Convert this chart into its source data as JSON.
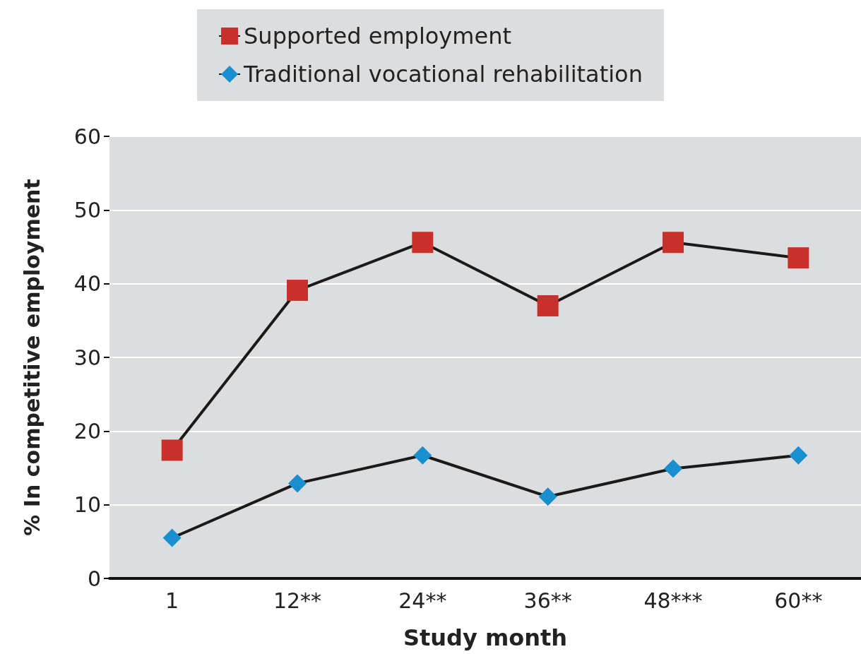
{
  "chart_data": {
    "type": "line",
    "xlabel": "Study month",
    "ylabel": "% In competitive employment",
    "categories": [
      "1",
      "12**",
      "24**",
      "36**",
      "48***",
      "60**"
    ],
    "series": [
      {
        "name": "Supported employment",
        "color": "#c8312b",
        "marker": "square",
        "values": [
          17.4,
          39.1,
          45.6,
          37.0,
          45.6,
          43.5
        ]
      },
      {
        "name": "Traditional vocational rehabilitation",
        "color": "#1a8fd0",
        "marker": "diamond",
        "values": [
          5.5,
          12.9,
          16.7,
          11.1,
          14.9,
          16.7
        ]
      }
    ],
    "ylim": [
      0,
      60
    ],
    "yticks": [
      0,
      10,
      20,
      30,
      40,
      50,
      60
    ],
    "grid": "y",
    "legend": "top"
  }
}
